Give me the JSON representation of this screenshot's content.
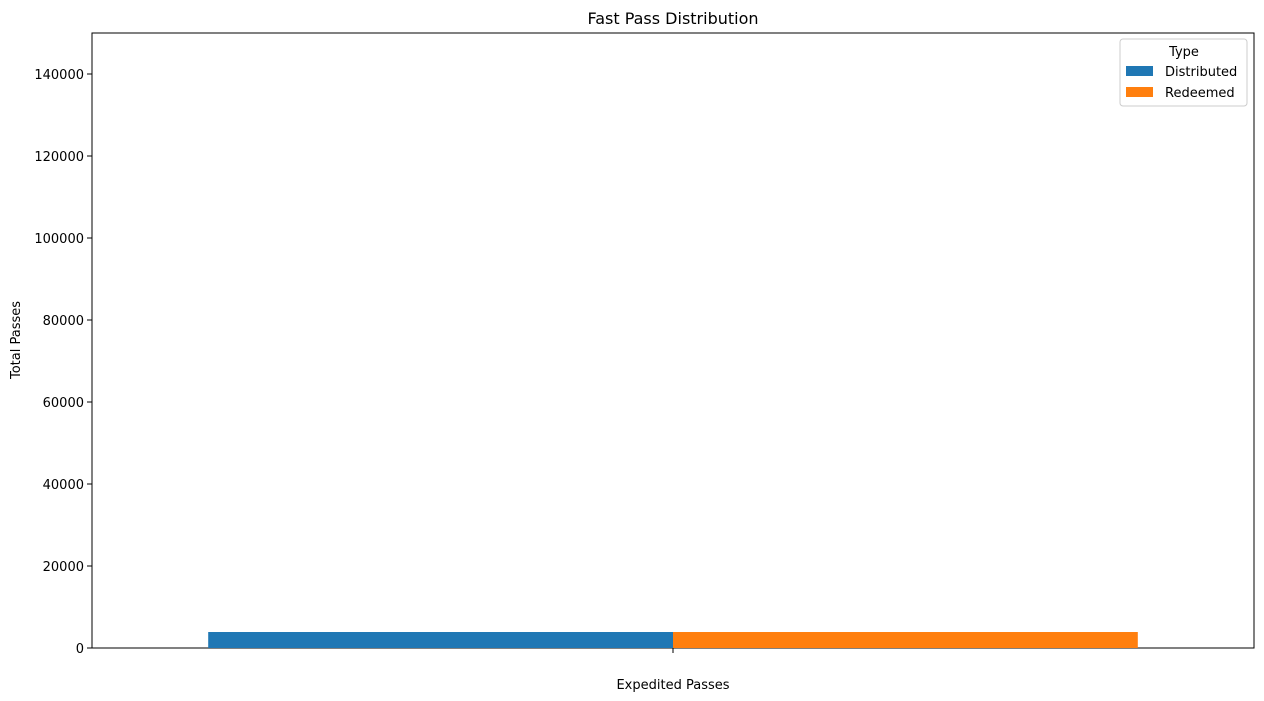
{
  "chart_data": {
    "type": "bar",
    "title": "Fast Pass Distribution",
    "xlabel": "",
    "ylabel": "Total Passes",
    "categories": [
      "Expedited Passes"
    ],
    "series": [
      {
        "name": "Distributed",
        "values": [
          3900
        ],
        "color": "#1f77b4"
      },
      {
        "name": "Redeemed",
        "values": [
          3900
        ],
        "color": "#ff7f0e"
      }
    ],
    "ylim": [
      0,
      150000
    ],
    "yticks": [
      0,
      20000,
      40000,
      60000,
      80000,
      100000,
      120000,
      140000
    ],
    "legend": {
      "title": "Type",
      "placement": "top-right"
    },
    "grid": false
  }
}
